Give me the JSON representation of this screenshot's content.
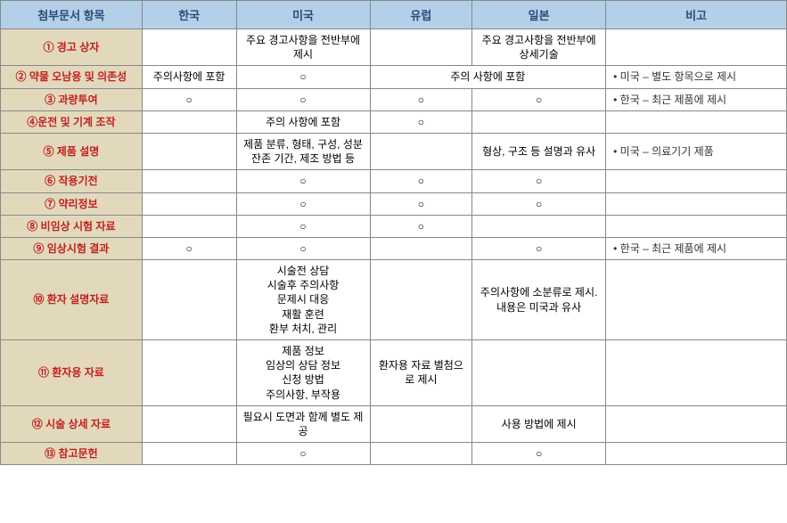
{
  "columns": {
    "label": "첨부문서 항목",
    "kr": "한국",
    "us": "미국",
    "eu": "유럽",
    "jp": "일본",
    "note": "비고"
  },
  "rows": [
    {
      "label": "① 경고 상자",
      "kr": "",
      "us": "주요 경고사항을 전반부에 제시",
      "eu": "",
      "jp": "주요 경고사항을 전반부에 상세기술",
      "note": ""
    },
    {
      "label": "② 약물 오남용 및 의존성",
      "kr": "주의사항에 포함",
      "us": "○",
      "eu_jp_merged": true,
      "eu_jp": "주의 사항에 포함",
      "note": "미국 – 별도 항목으로 제시",
      "note_bullet": true
    },
    {
      "label": "③ 과량투여",
      "kr": "○",
      "us": "○",
      "eu": "○",
      "jp": "○",
      "note": "한국 – 최근 제품에 제시",
      "note_bullet": true
    },
    {
      "label": "④운전 및 기계 조작",
      "kr": "",
      "us": "주의 사항에 포함",
      "eu": "○",
      "jp": "",
      "note": ""
    },
    {
      "label": "⑤ 제품 설명",
      "kr": "",
      "us": "제품 분류, 형태, 구성, 성분 잔존 기간, 제조 방법 등",
      "eu": "",
      "jp": "형상, 구조 등 설명과 유사",
      "note": "미국 – 의료기기 제품",
      "note_bullet": true
    },
    {
      "label": "⑥ 작용기전",
      "kr": "",
      "us": "○",
      "eu": "○",
      "jp": "○",
      "note": ""
    },
    {
      "label": "⑦ 약리정보",
      "kr": "",
      "us": "○",
      "eu": "○",
      "jp": "○",
      "note": ""
    },
    {
      "label": "⑧ 비임상 시험 자료",
      "kr": "",
      "us": "○",
      "eu": "○",
      "jp": "",
      "note": ""
    },
    {
      "label": "⑨ 임상시험 결과",
      "kr": "○",
      "us": "○",
      "eu": "",
      "jp": "○",
      "note": "한국 – 최근 제품에 제시",
      "note_bullet": true
    },
    {
      "label": "⑩ 환자 설명자료",
      "kr": "",
      "us": "시술전 상담\n시술후 주의사항\n문제시 대응\n재활 훈련\n환부 처치, 관리",
      "eu": "",
      "jp": "주의사항에 소분류로 제시. 내용은 미국과 유사",
      "note": ""
    },
    {
      "label": "⑪ 환자용 자료",
      "kr": "",
      "us": "제품 정보\n임상의 상담 정보\n신청 방법\n주의사항, 부작용",
      "eu": "환자용 자료 별첨으로 제시",
      "jp": "",
      "note": ""
    },
    {
      "label": "⑫ 시술 상세 자료",
      "kr": "",
      "us": "필요시 도면과 함께 별도 제공",
      "eu": "",
      "jp": "사용 방법에 제시",
      "note": ""
    },
    {
      "label": "⑬ 참고문헌",
      "kr": "",
      "us": "○",
      "eu": "",
      "jp": "○",
      "note": ""
    }
  ],
  "style": {
    "header_bg": "#b3d0e8",
    "header_text": "#2b4a7a",
    "label_bg": "#e2d9bd",
    "label_text": "#c22020",
    "border_color": "#888888",
    "body_text": "#333333",
    "font_size_header": 13,
    "font_size_body": 12
  }
}
